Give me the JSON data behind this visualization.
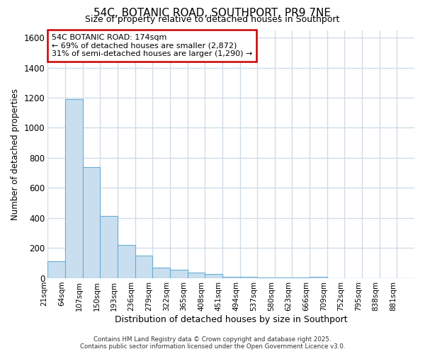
{
  "title": "54C, BOTANIC ROAD, SOUTHPORT, PR9 7NE",
  "subtitle": "Size of property relative to detached houses in Southport",
  "xlabel": "Distribution of detached houses by size in Southport",
  "ylabel": "Number of detached properties",
  "bar_labels": [
    "21sqm",
    "64sqm",
    "107sqm",
    "150sqm",
    "193sqm",
    "236sqm",
    "279sqm",
    "322sqm",
    "365sqm",
    "408sqm",
    "451sqm",
    "494sqm",
    "537sqm",
    "580sqm",
    "623sqm",
    "666sqm",
    "709sqm",
    "752sqm",
    "795sqm",
    "838sqm",
    "881sqm"
  ],
  "bar_values": [
    110,
    1190,
    740,
    415,
    220,
    150,
    70,
    55,
    35,
    25,
    10,
    8,
    5,
    3,
    2,
    10,
    0,
    0,
    0,
    0,
    0
  ],
  "bar_color": "#c9dff0",
  "bar_edge_color": "#6aaed6",
  "ylim": [
    0,
    1650
  ],
  "yticks": [
    0,
    200,
    400,
    600,
    800,
    1000,
    1200,
    1400,
    1600
  ],
  "bg_color": "#ffffff",
  "grid_color": "#d0dce8",
  "annotation_title": "54C BOTANIC ROAD: 174sqm",
  "annotation_line1": "← 69% of detached houses are smaller (2,872)",
  "annotation_line2": "31% of semi-detached houses are larger (1,290) →",
  "annotation_box_facecolor": "#ffffff",
  "annotation_box_edgecolor": "#cc0000",
  "footer1": "Contains HM Land Registry data © Crown copyright and database right 2025.",
  "footer2": "Contains public sector information licensed under the Open Government Licence v3.0."
}
